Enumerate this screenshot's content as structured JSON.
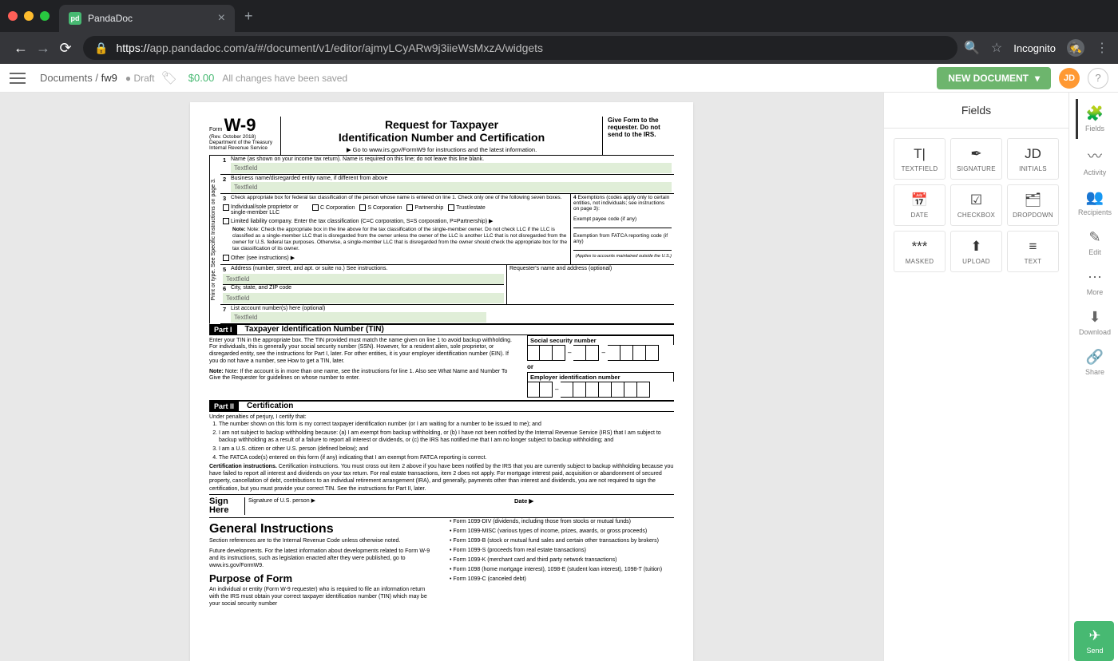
{
  "browser": {
    "tab_title": "PandaDoc",
    "url_prefix": "https://",
    "url": "app.pandadoc.com/a/#/document/v1/editor/ajmyLCyARw9j3iieWsMxzA/widgets",
    "incognito_label": "Incognito"
  },
  "app_bar": {
    "breadcrumb_root": "Documents",
    "breadcrumb_doc": "fw9",
    "status": "Draft",
    "price": "$0.00",
    "save_msg": "All changes have been saved",
    "new_doc": "NEW DOCUMENT",
    "avatar": "JD"
  },
  "fields_panel": {
    "title": "Fields",
    "items": [
      {
        "icon": "T|",
        "label": "TEXTFIELD"
      },
      {
        "icon": "✒",
        "label": "SIGNATURE"
      },
      {
        "icon": "JD",
        "label": "INITIALS"
      },
      {
        "icon": "📅",
        "label": "DATE"
      },
      {
        "icon": "☑",
        "label": "CHECKBOX"
      },
      {
        "icon": "🗂",
        "label": "DROPDOWN"
      },
      {
        "icon": "***",
        "label": "MASKED"
      },
      {
        "icon": "⬆",
        "label": "UPLOAD"
      },
      {
        "icon": "≡",
        "label": "TEXT"
      }
    ]
  },
  "rail": {
    "items": [
      {
        "icon": "🧩",
        "label": "Fields"
      },
      {
        "icon": "〰",
        "label": "Activity"
      },
      {
        "icon": "👥",
        "label": "Recipients"
      },
      {
        "icon": "✎",
        "label": "Edit"
      },
      {
        "icon": "⋯",
        "label": "More"
      },
      {
        "icon": "⬇",
        "label": "Download"
      },
      {
        "icon": "🔗",
        "label": "Share"
      }
    ],
    "send": {
      "icon": "✈",
      "label": "Send"
    }
  },
  "w9": {
    "form_word": "Form",
    "form_no": "W-9",
    "rev": "(Rev. October 2018)",
    "dept": "Department of the Treasury",
    "irs": "Internal Revenue Service",
    "title1": "Request for Taxpayer",
    "title2": "Identification Number and Certification",
    "goto": "▶ Go to www.irs.gov/FormW9 for instructions and the latest information.",
    "give": "Give Form to the requester. Do not send to the IRS.",
    "sidebar": "Print or type. See Specific Instructions on page 3.",
    "line1": "Name (as shown on your income tax return). Name is required on this line; do not leave this line blank.",
    "textfield": "Textfield",
    "line2": "Business name/disregarded entity name, if different from above",
    "line3": "Check appropriate box for federal tax classification of the person whose name is entered on line 1. Check only one of the following seven boxes.",
    "cb1": "Individual/sole proprietor or single-member LLC",
    "cb2": "C Corporation",
    "cb3": "S Corporation",
    "cb4": "Partnership",
    "cb5": "Trust/estate",
    "cb6": "Limited liability company. Enter the tax classification (C=C corporation, S=S corporation, P=Partnership) ▶",
    "note3": "Note: Check the appropriate box in the line above for the tax classification of the single-member owner. Do not check LLC if the LLC is classified as a single-member LLC that is disregarded from the owner unless the owner of the LLC is another LLC that is not disregarded from the owner for U.S. federal tax purposes. Otherwise, a single-member LLC that is disregarded from the owner should check the appropriate box for the tax classification of its owner.",
    "cb7": "Other (see instructions) ▶",
    "line4a": "Exemptions (codes apply only to certain entities, not individuals; see instructions on page 3):",
    "line4b": "Exempt payee code (if any)",
    "line4c": "Exemption from FATCA reporting code (if any)",
    "line4d": "(Applies to accounts maintained outside the U.S.)",
    "line5": "Address (number, street, and apt. or suite no.) See instructions.",
    "line5r": "Requester's name and address (optional)",
    "line6": "City, state, and ZIP code",
    "line7": "List account number(s) here (optional)",
    "part1": "Part I",
    "part1_title": "Taxpayer Identification Number (TIN)",
    "tin_text1": "Enter your TIN in the appropriate box. The TIN provided must match the name given on line 1 to avoid backup withholding. For individuals, this is generally your social security number (SSN). However, for a resident alien, sole proprietor, or disregarded entity, see the instructions for Part I, later. For other entities, it is your employer identification number (EIN). If you do not have a number, see How to get a TIN, later.",
    "tin_note": "Note: If the account is in more than one name, see the instructions for line 1. Also see What Name and Number To Give the Requester for guidelines on whose number to enter.",
    "ssn_label": "Social security number",
    "or": "or",
    "ein_label": "Employer identification number",
    "part2": "Part II",
    "part2_title": "Certification",
    "cert_intro": "Under penalties of perjury, I certify that:",
    "cert1": "The number shown on this form is my correct taxpayer identification number (or I am waiting for a number to be issued to me); and",
    "cert2": "I am not subject to backup withholding because: (a) I am exempt from backup withholding, or (b) I have not been notified by the Internal Revenue Service (IRS) that I am subject to backup withholding as a result of a failure to report all interest or dividends, or (c) the IRS has notified me that I am no longer subject to backup withholding; and",
    "cert3": "I am a U.S. citizen or other U.S. person (defined below); and",
    "cert4": "The FATCA code(s) entered on this form (if any) indicating that I am exempt from FATCA reporting is correct.",
    "cert_inst": "Certification instructions. You must cross out item 2 above if you have been notified by the IRS that you are currently subject to backup withholding because you have failed to report all interest and dividends on your tax return. For real estate transactions, item 2 does not apply. For mortgage interest paid, acquisition or abandonment of secured property, cancellation of debt, contributions to an individual retirement arrangement (IRA), and generally, payments other than interest and dividends, you are not required to sign the certification, but you must provide your correct TIN. See the instructions for Part II, later.",
    "sign_here": "Sign Here",
    "sig_of": "Signature of U.S. person ▶",
    "date": "Date ▶",
    "gen_inst": "General Instructions",
    "gen_p1": "Section references are to the Internal Revenue Code unless otherwise noted.",
    "gen_p2": "Future developments. For the latest information about developments related to Form W-9 and its instructions, such as legislation enacted after they were published, go to www.irs.gov/FormW9.",
    "purpose": "Purpose of Form",
    "purpose_p": "An individual or entity (Form W-9 requester) who is required to file an information return with the IRS must obtain your correct taxpayer identification number (TIN) which may be your social security number",
    "bullets": [
      "• Form 1099-DIV (dividends, including those from stocks or mutual funds)",
      "• Form 1099-MISC (various types of income, prizes, awards, or gross proceeds)",
      "• Form 1099-B (stock or mutual fund sales and certain other transactions by brokers)",
      "• Form 1099-S (proceeds from real estate transactions)",
      "• Form 1099-K (merchant card and third party network transactions)",
      "• Form 1098 (home mortgage interest), 1098-E (student loan interest), 1098-T (tuition)",
      "• Form 1099-C (canceled debt)"
    ]
  }
}
